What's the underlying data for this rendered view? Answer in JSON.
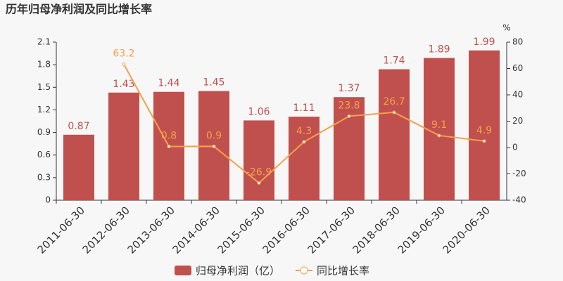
{
  "chart_data": {
    "type": "bar",
    "title": "历年归母净利润及同比增长率",
    "categories": [
      "2011-06-30",
      "2012-06-30",
      "2013-06-30",
      "2014-06-30",
      "2015-06-30",
      "2016-06-30",
      "2017-06-30",
      "2018-06-30",
      "2019-06-30",
      "2020-06-30"
    ],
    "series": [
      {
        "name": "归母净利润（亿）",
        "type": "bar",
        "color": "#c0504d",
        "values": [
          0.87,
          1.43,
          1.44,
          1.45,
          1.06,
          1.11,
          1.37,
          1.74,
          1.89,
          1.99
        ]
      },
      {
        "name": "同比增长率",
        "type": "line",
        "axis": "y2",
        "color": "#f5a04c",
        "values": [
          null,
          63.2,
          0.8,
          0.9,
          -26.9,
          4.3,
          23.8,
          26.7,
          9.1,
          4.9
        ]
      }
    ],
    "ylim": [
      0,
      2.1
    ],
    "yticks": [
      0,
      0.3,
      0.6,
      0.9,
      1.2,
      1.5,
      1.8,
      2.1
    ],
    "y2label": "%",
    "y2lim": [
      -40,
      80
    ],
    "y2ticks": [
      -40,
      -20,
      0,
      20,
      40,
      60,
      80
    ],
    "grid": false,
    "legend": "bottom"
  }
}
